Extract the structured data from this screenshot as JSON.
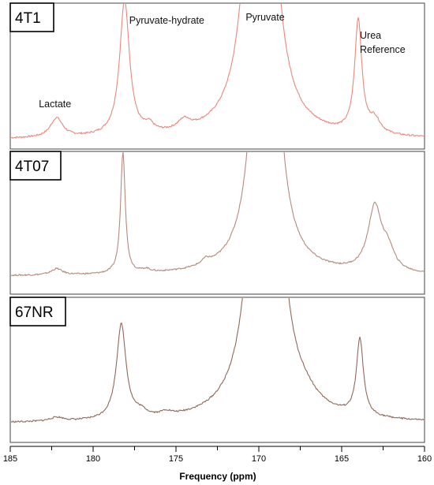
{
  "chart_data": {
    "type": "line",
    "title": "",
    "xlabel": "Frequency (ppm)",
    "ylabel": "",
    "xlim": [
      185,
      160
    ],
    "x_ticks": [
      "185",
      "180",
      "175",
      "170",
      "165",
      "160"
    ],
    "x_tick_values": [
      185,
      180,
      175,
      170,
      165,
      160
    ],
    "y_axis_values_shown": false,
    "peak_labels": [
      {
        "text": "Lactate",
        "ppm": 182.3
      },
      {
        "text": "Pyruvate-hydrate",
        "ppm": 178.2
      },
      {
        "text": "Pyruvate",
        "ppm": 170.0
      },
      {
        "text": "Urea",
        "ppm": 164.0
      },
      {
        "text": "Reference",
        "ppm": 164.0
      }
    ],
    "panels": [
      {
        "name": "4T1",
        "color": "#e8887c",
        "baseline": 0.04,
        "noise": 0.006,
        "peaks": [
          {
            "ppm": 182.2,
            "height": 0.14,
            "width": 0.45
          },
          {
            "ppm": 178.1,
            "height": 0.98,
            "width": 0.36
          },
          {
            "ppm": 176.6,
            "height": 0.05,
            "width": 0.3
          },
          {
            "ppm": 174.5,
            "height": 0.07,
            "width": 0.45
          },
          {
            "ppm": 169.9,
            "height": 6.0,
            "width": 0.55
          },
          {
            "ppm": 164.0,
            "height": 0.82,
            "width": 0.26
          },
          {
            "ppm": 163.0,
            "height": 0.1,
            "width": 0.4
          }
        ]
      },
      {
        "name": "4T07",
        "color": "#b58a7c",
        "baseline": 0.03,
        "noise": 0.006,
        "peaks": [
          {
            "ppm": 182.2,
            "height": 0.05,
            "width": 0.4
          },
          {
            "ppm": 178.2,
            "height": 0.98,
            "width": 0.17
          },
          {
            "ppm": 176.8,
            "height": 0.025,
            "width": 0.3
          },
          {
            "ppm": 173.2,
            "height": 0.04,
            "width": 0.3
          },
          {
            "ppm": 169.6,
            "height": 6.0,
            "width": 0.5
          },
          {
            "ppm": 163.0,
            "height": 0.52,
            "width": 0.5
          },
          {
            "ppm": 162.2,
            "height": 0.15,
            "width": 0.45
          }
        ]
      },
      {
        "name": "67NR",
        "color": "#8f6a5a",
        "baseline": 0.03,
        "noise": 0.006,
        "peaks": [
          {
            "ppm": 182.2,
            "height": 0.03,
            "width": 0.5
          },
          {
            "ppm": 178.3,
            "height": 0.72,
            "width": 0.35
          },
          {
            "ppm": 177.1,
            "height": 0.04,
            "width": 0.45
          },
          {
            "ppm": 175.6,
            "height": 0.03,
            "width": 0.4
          },
          {
            "ppm": 169.6,
            "height": 6.0,
            "width": 0.6
          },
          {
            "ppm": 167.2,
            "height": 0.06,
            "width": 0.9
          },
          {
            "ppm": 163.9,
            "height": 0.58,
            "width": 0.25
          }
        ]
      }
    ]
  }
}
